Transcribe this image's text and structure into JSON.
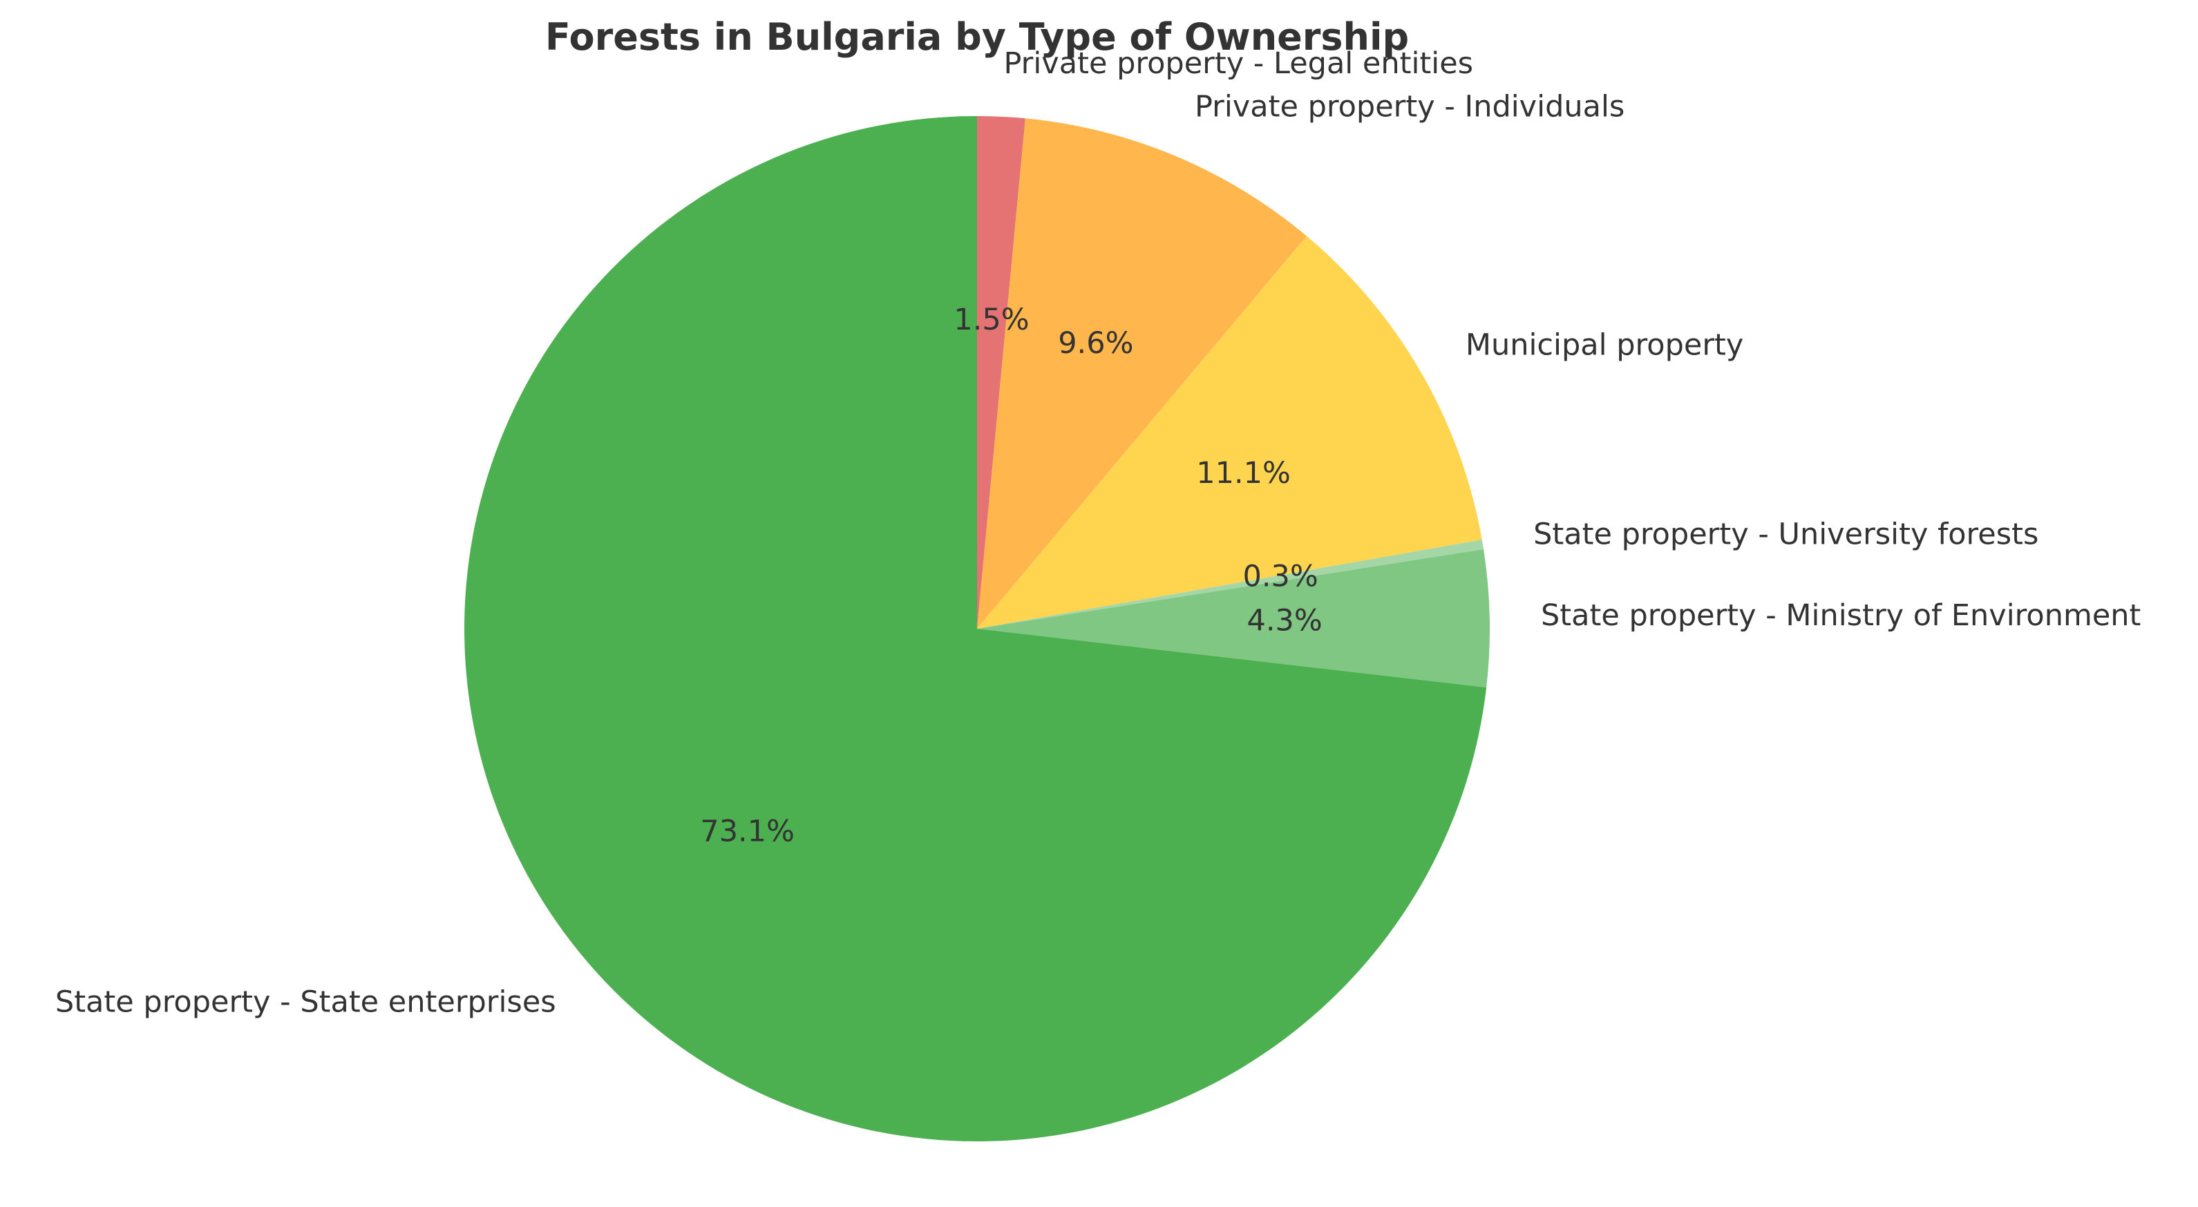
{
  "chart_data": {
    "type": "pie",
    "title": "Forests in Bulgaria by Type of Ownership",
    "start_angle_deg": 90,
    "direction": "clockwise",
    "slices": [
      {
        "label": "Private property - Legal entities",
        "value": 1.5,
        "pct_label": "1.5%",
        "color": "#E57373"
      },
      {
        "label": "Private property - Individuals",
        "value": 9.6,
        "pct_label": "9.6%",
        "color": "#FFB74D"
      },
      {
        "label": "Municipal property",
        "value": 11.1,
        "pct_label": "11.1%",
        "color": "#FFD54F"
      },
      {
        "label": "State property - University forests",
        "value": 0.3,
        "pct_label": "0.3%",
        "color": "#A5D6A7"
      },
      {
        "label": "State property - Ministry of Environment",
        "value": 4.3,
        "pct_label": "4.3%",
        "color": "#81C784"
      },
      {
        "label": "State property - State enterprises",
        "value": 73.1,
        "pct_label": "73.1%",
        "color": "#4CAF50"
      }
    ]
  }
}
